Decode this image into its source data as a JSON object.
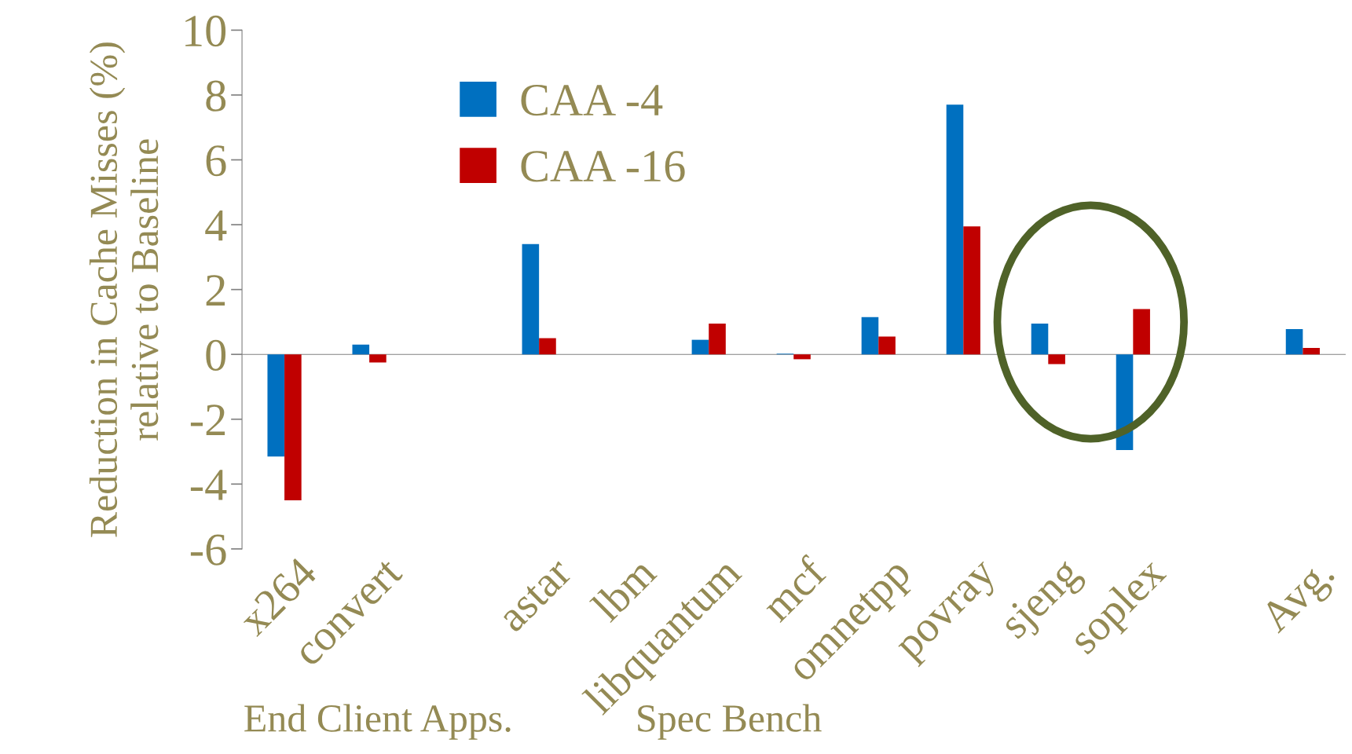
{
  "chart_data": {
    "type": "bar",
    "ylabel": "Reduction in Cache Misses (%) relative to Baseline",
    "categories": [
      "x264",
      "convert",
      null,
      "astar",
      "lbm",
      "libquantum",
      "mcf",
      "omnetpp",
      "povray",
      "sjeng",
      "soplex",
      null,
      "Avg."
    ],
    "series": [
      {
        "name": "CAA -4",
        "color": "#0070c0",
        "values": [
          -3.15,
          0.3,
          null,
          3.4,
          0,
          0.45,
          0.02,
          1.15,
          7.7,
          0.95,
          -2.95,
          null,
          0.78
        ]
      },
      {
        "name": "CAA -16",
        "color": "#c00000",
        "values": [
          -4.5,
          -0.25,
          null,
          0.5,
          0,
          0.95,
          -0.15,
          0.55,
          3.95,
          -0.3,
          1.4,
          null,
          0.2
        ]
      }
    ],
    "ylim": [
      -6,
      10
    ],
    "yticks": [
      -6,
      -4,
      -2,
      0,
      2,
      4,
      6,
      8,
      10
    ],
    "legend": "top left",
    "annotations": [
      "End Client Apps.",
      "Spec Bench"
    ]
  }
}
